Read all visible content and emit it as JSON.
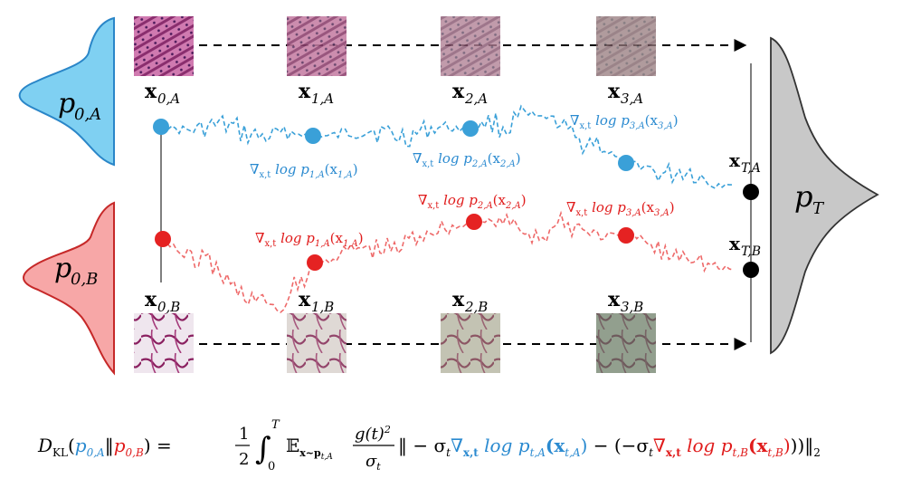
{
  "colors": {
    "blue": "#3aa0d8",
    "blue_fill": "#7fd0f2",
    "red": "#e52222",
    "red_fill": "#f7a7a7",
    "gray_fill": "#c8c8c8",
    "black": "#000000"
  },
  "distributions": {
    "p0A": {
      "base": "p",
      "sub": "0,A"
    },
    "p0B": {
      "base": "p",
      "sub": "0,B"
    },
    "pT": {
      "base": "p",
      "sub": "T"
    }
  },
  "row_a": {
    "labels": [
      {
        "base": "x",
        "sub": "0,A"
      },
      {
        "base": "x",
        "sub": "1,A"
      },
      {
        "base": "x",
        "sub": "2,A"
      },
      {
        "base": "x",
        "sub": "3,A"
      }
    ],
    "terminal": {
      "base": "x",
      "sub": "T,A"
    },
    "score_labels": [
      {
        "grad": "∇",
        "gsub": "x,t",
        "fn": " log p",
        "fsub": "1,A",
        "arg": "(x",
        "asub": "1,A",
        "close": ")"
      },
      {
        "grad": "∇",
        "gsub": "x,t",
        "fn": " log p",
        "fsub": "2,A",
        "arg": "(x",
        "asub": "2,A",
        "close": ")"
      },
      {
        "grad": "∇",
        "gsub": "x,t",
        "fn": " log p",
        "fsub": "3,A",
        "arg": "(x",
        "asub": "3,A",
        "close": ")"
      }
    ]
  },
  "row_b": {
    "labels": [
      {
        "base": "x",
        "sub": "0,B"
      },
      {
        "base": "x",
        "sub": "1,B"
      },
      {
        "base": "x",
        "sub": "2,B"
      },
      {
        "base": "x",
        "sub": "3,B"
      }
    ],
    "terminal": {
      "base": "x",
      "sub": "T,B"
    },
    "score_labels": [
      {
        "grad": "∇",
        "gsub": "x,t",
        "fn": " log p",
        "fsub": "1,A",
        "arg": "(x",
        "asub": "1,A",
        "close": ")"
      },
      {
        "grad": "∇",
        "gsub": "x,t",
        "fn": " log p",
        "fsub": "2,A",
        "arg": "(x",
        "asub": "2,A",
        "close": ")"
      },
      {
        "grad": "∇",
        "gsub": "x,t",
        "fn": " log p",
        "fsub": "3,A",
        "arg": "(x",
        "asub": "3,A",
        "close": ")"
      }
    ]
  },
  "equation": {
    "lhs_D": "D",
    "lhs_sub": "KL",
    "lhs_open": "(",
    "lhs_p0A": "p",
    "lhs_p0A_sub": "0,A",
    "lhs_sep": "‖",
    "lhs_p0B": "p",
    "lhs_p0B_sub": "0,B",
    "lhs_close": ") =",
    "frac_num": "1",
    "frac_den": "2",
    "integral": "∫",
    "int_upper": "T",
    "int_lower": "0",
    "expect": "𝔼",
    "expect_sub": "x~p",
    "expect_sub2": "t,A",
    "g_num": "g(t)",
    "g_exp": "2",
    "g_den": "σ",
    "g_den_sub": "t",
    "norm_open": "‖ − σ",
    "sigma_sub": "t",
    "blue_term": "∇",
    "blue_term_sub": "x,t",
    "blue_log": " log p",
    "blue_log_sub": "t,A",
    "blue_arg": "(x",
    "blue_arg_sub": "t,A",
    "blue_close": ")",
    "minus_open": " − (−σ",
    "sigma2_sub": "t",
    "red_term": "∇",
    "red_term_sub": "x,t",
    "red_log": " log p",
    "red_log_sub": "t,B",
    "red_arg": "(x",
    "red_arg_sub": "t,B",
    "red_close": ")",
    "end": "))‖",
    "end_sub": "2"
  }
}
